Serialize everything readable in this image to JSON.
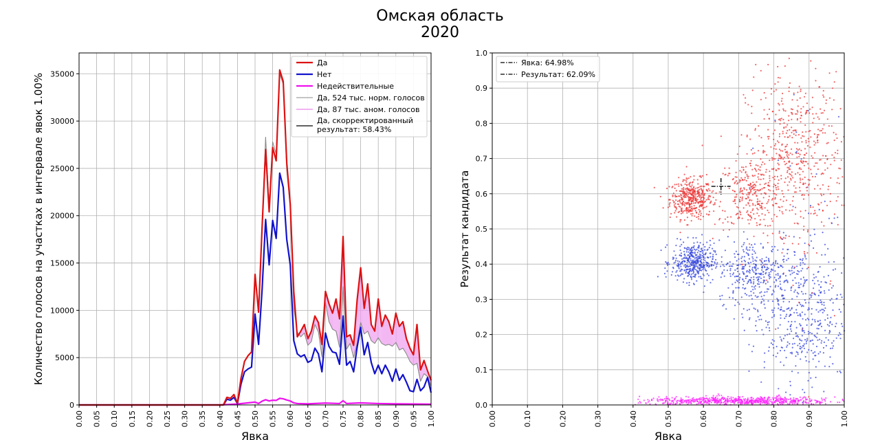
{
  "figure": {
    "title_line1": "Омская область",
    "title_line2": "2020"
  },
  "chart_data": [
    {
      "type": "line",
      "xlabel": "Явка",
      "ylabel": "Количество голосов на участках в интервале явок 1.00%",
      "xlim": [
        0,
        1
      ],
      "ylim": [
        0,
        37200
      ],
      "grid": true,
      "legend_position": "top-right",
      "x_ticks": [
        "0.00",
        "0.05",
        "0.10",
        "0.15",
        "0.20",
        "0.25",
        "0.30",
        "0.35",
        "0.40",
        "0.45",
        "0.50",
        "0.55",
        "0.60",
        "0.65",
        "0.70",
        "0.75",
        "0.80",
        "0.85",
        "0.90",
        "0.95",
        "1.00"
      ],
      "x_tick_values": [
        0,
        0.05,
        0.1,
        0.15,
        0.2,
        0.25,
        0.3,
        0.35,
        0.4,
        0.45,
        0.5,
        0.55,
        0.6,
        0.65,
        0.7,
        0.75,
        0.8,
        0.85,
        0.9,
        0.95,
        1.0
      ],
      "y_ticks": [
        "0",
        "5000",
        "10000",
        "15000",
        "20000",
        "25000",
        "30000",
        "35000"
      ],
      "y_tick_values": [
        0,
        5000,
        10000,
        15000,
        20000,
        25000,
        30000,
        35000
      ],
      "series": [
        {
          "name": "Да",
          "color": "#dd1111",
          "width": 2.2,
          "points": [
            [
              0,
              0
            ],
            [
              0.41,
              0
            ],
            [
              0.42,
              800
            ],
            [
              0.43,
              700
            ],
            [
              0.44,
              1100
            ],
            [
              0.45,
              200
            ],
            [
              0.46,
              2800
            ],
            [
              0.47,
              4600
            ],
            [
              0.48,
              5200
            ],
            [
              0.49,
              5600
            ],
            [
              0.5,
              13800
            ],
            [
              0.51,
              9800
            ],
            [
              0.52,
              18800
            ],
            [
              0.53,
              27000
            ],
            [
              0.54,
              20400
            ],
            [
              0.55,
              27200
            ],
            [
              0.56,
              25800
            ],
            [
              0.57,
              35400
            ],
            [
              0.58,
              34200
            ],
            [
              0.59,
              25600
            ],
            [
              0.6,
              21200
            ],
            [
              0.61,
              12000
            ],
            [
              0.62,
              7200
            ],
            [
              0.63,
              7800
            ],
            [
              0.64,
              8500
            ],
            [
              0.65,
              7000
            ],
            [
              0.66,
              7800
            ],
            [
              0.67,
              9400
            ],
            [
              0.68,
              8700
            ],
            [
              0.69,
              6400
            ],
            [
              0.7,
              12000
            ],
            [
              0.71,
              10700
            ],
            [
              0.72,
              9700
            ],
            [
              0.73,
              11200
            ],
            [
              0.74,
              9100
            ],
            [
              0.75,
              17800
            ],
            [
              0.76,
              7200
            ],
            [
              0.77,
              7400
            ],
            [
              0.78,
              6300
            ],
            [
              0.79,
              11100
            ],
            [
              0.8,
              14500
            ],
            [
              0.81,
              10200
            ],
            [
              0.82,
              12800
            ],
            [
              0.83,
              8500
            ],
            [
              0.84,
              7800
            ],
            [
              0.85,
              11200
            ],
            [
              0.86,
              8300
            ],
            [
              0.87,
              9500
            ],
            [
              0.88,
              8800
            ],
            [
              0.89,
              7500
            ],
            [
              0.9,
              9700
            ],
            [
              0.91,
              8300
            ],
            [
              0.92,
              8800
            ],
            [
              0.93,
              7000
            ],
            [
              0.94,
              6000
            ],
            [
              0.95,
              5300
            ],
            [
              0.96,
              8500
            ],
            [
              0.97,
              3700
            ],
            [
              0.98,
              4700
            ],
            [
              0.99,
              3600
            ],
            [
              1.0,
              2600
            ]
          ]
        },
        {
          "name": "Нет",
          "color": "#1111cc",
          "width": 2.2,
          "points": [
            [
              0,
              0
            ],
            [
              0.41,
              0
            ],
            [
              0.42,
              600
            ],
            [
              0.43,
              500
            ],
            [
              0.44,
              800
            ],
            [
              0.45,
              150
            ],
            [
              0.46,
              2200
            ],
            [
              0.47,
              3500
            ],
            [
              0.48,
              3800
            ],
            [
              0.49,
              4000
            ],
            [
              0.5,
              9600
            ],
            [
              0.51,
              6400
            ],
            [
              0.52,
              12200
            ],
            [
              0.53,
              19600
            ],
            [
              0.54,
              14800
            ],
            [
              0.55,
              19500
            ],
            [
              0.56,
              17600
            ],
            [
              0.57,
              24500
            ],
            [
              0.58,
              23000
            ],
            [
              0.59,
              17500
            ],
            [
              0.6,
              14800
            ],
            [
              0.61,
              6800
            ],
            [
              0.62,
              5400
            ],
            [
              0.63,
              5100
            ],
            [
              0.64,
              5300
            ],
            [
              0.65,
              4500
            ],
            [
              0.66,
              4700
            ],
            [
              0.67,
              6000
            ],
            [
              0.68,
              5400
            ],
            [
              0.69,
              3500
            ],
            [
              0.7,
              7600
            ],
            [
              0.71,
              6200
            ],
            [
              0.72,
              5600
            ],
            [
              0.73,
              5500
            ],
            [
              0.74,
              4300
            ],
            [
              0.75,
              9400
            ],
            [
              0.76,
              4200
            ],
            [
              0.77,
              4600
            ],
            [
              0.78,
              3500
            ],
            [
              0.79,
              6100
            ],
            [
              0.8,
              8200
            ],
            [
              0.81,
              5300
            ],
            [
              0.82,
              6600
            ],
            [
              0.83,
              4500
            ],
            [
              0.84,
              3300
            ],
            [
              0.85,
              4200
            ],
            [
              0.86,
              3300
            ],
            [
              0.87,
              4200
            ],
            [
              0.88,
              3500
            ],
            [
              0.89,
              2500
            ],
            [
              0.9,
              3800
            ],
            [
              0.91,
              2600
            ],
            [
              0.92,
              3200
            ],
            [
              0.93,
              2400
            ],
            [
              0.94,
              1500
            ],
            [
              0.95,
              1400
            ],
            [
              0.96,
              2700
            ],
            [
              0.97,
              1500
            ],
            [
              0.98,
              1900
            ],
            [
              0.99,
              2900
            ],
            [
              1.0,
              1300
            ]
          ]
        },
        {
          "name": "Недействительные",
          "color": "#ee11ee",
          "width": 2.2,
          "points": [
            [
              0,
              0
            ],
            [
              0.4,
              0
            ],
            [
              0.45,
              100
            ],
            [
              0.5,
              300
            ],
            [
              0.51,
              150
            ],
            [
              0.52,
              400
            ],
            [
              0.53,
              550
            ],
            [
              0.54,
              420
            ],
            [
              0.55,
              500
            ],
            [
              0.56,
              480
            ],
            [
              0.57,
              700
            ],
            [
              0.58,
              650
            ],
            [
              0.59,
              520
            ],
            [
              0.6,
              420
            ],
            [
              0.61,
              220
            ],
            [
              0.62,
              150
            ],
            [
              0.65,
              120
            ],
            [
              0.7,
              200
            ],
            [
              0.74,
              150
            ],
            [
              0.75,
              450
            ],
            [
              0.76,
              150
            ],
            [
              0.8,
              220
            ],
            [
              0.85,
              150
            ],
            [
              0.9,
              120
            ],
            [
              0.95,
              100
            ],
            [
              1.0,
              80
            ]
          ]
        },
        {
          "name": "Да, 524 тыс. норм. голосов",
          "color": "#888888",
          "width": 1.1,
          "points": [
            [
              0,
              0
            ],
            [
              0.41,
              0
            ],
            [
              0.42,
              800
            ],
            [
              0.43,
              700
            ],
            [
              0.44,
              1100
            ],
            [
              0.45,
              200
            ],
            [
              0.46,
              2800
            ],
            [
              0.47,
              4600
            ],
            [
              0.48,
              5200
            ],
            [
              0.49,
              5600
            ],
            [
              0.5,
              13800
            ],
            [
              0.51,
              9800
            ],
            [
              0.52,
              18800
            ],
            [
              0.53,
              28300
            ],
            [
              0.54,
              21000
            ],
            [
              0.55,
              27800
            ],
            [
              0.56,
              26500
            ],
            [
              0.57,
              35000
            ],
            [
              0.58,
              33900
            ],
            [
              0.59,
              24800
            ],
            [
              0.6,
              20800
            ],
            [
              0.61,
              10200
            ],
            [
              0.62,
              7700
            ],
            [
              0.63,
              7200
            ],
            [
              0.64,
              7600
            ],
            [
              0.65,
              6300
            ],
            [
              0.66,
              6700
            ],
            [
              0.67,
              8500
            ],
            [
              0.68,
              7700
            ],
            [
              0.69,
              5100
            ],
            [
              0.7,
              10800
            ],
            [
              0.71,
              8800
            ],
            [
              0.72,
              8000
            ],
            [
              0.73,
              7800
            ],
            [
              0.74,
              6100
            ],
            [
              0.75,
              12500
            ],
            [
              0.76,
              5900
            ],
            [
              0.77,
              6500
            ],
            [
              0.78,
              5000
            ],
            [
              0.79,
              6500
            ],
            [
              0.8,
              8700
            ],
            [
              0.81,
              7500
            ],
            [
              0.82,
              7800
            ],
            [
              0.83,
              6800
            ],
            [
              0.84,
              6500
            ],
            [
              0.85,
              7100
            ],
            [
              0.86,
              6500
            ],
            [
              0.87,
              6300
            ],
            [
              0.88,
              6400
            ],
            [
              0.89,
              6200
            ],
            [
              0.9,
              6600
            ],
            [
              0.91,
              5800
            ],
            [
              0.92,
              6000
            ],
            [
              0.93,
              5400
            ],
            [
              0.94,
              4600
            ],
            [
              0.95,
              4200
            ],
            [
              0.96,
              4400
            ],
            [
              0.97,
              2500
            ],
            [
              0.98,
              3300
            ],
            [
              0.99,
              3000
            ],
            [
              1.0,
              2000
            ]
          ]
        },
        {
          "name": "Да, 87 тыс. аном. голосов",
          "color": "#ee99ee",
          "width": 1.1,
          "kind": "hatch"
        },
        {
          "name": "Да, скорректированный результат: 58.43%",
          "name_line1": "Да, скорректированный",
          "name_line2": "результат: 58.43%",
          "color": "#000000",
          "width": 1.3
        }
      ]
    },
    {
      "type": "scatter",
      "xlabel": "Явка",
      "ylabel": "Результат кандидата",
      "xlim": [
        0,
        1
      ],
      "ylim": [
        0,
        1
      ],
      "grid": true,
      "legend_position": "top-left",
      "x_ticks": [
        "0.00",
        "0.10",
        "0.20",
        "0.30",
        "0.40",
        "0.50",
        "0.60",
        "0.70",
        "0.80",
        "0.90",
        "1.00"
      ],
      "x_tick_values": [
        0,
        0.1,
        0.2,
        0.3,
        0.4,
        0.5,
        0.6,
        0.7,
        0.8,
        0.9,
        1.0
      ],
      "y_ticks": [
        "0.0",
        "0.1",
        "0.2",
        "0.3",
        "0.4",
        "0.5",
        "0.6",
        "0.7",
        "0.8",
        "0.9",
        "1.0"
      ],
      "y_tick_values": [
        0,
        0.1,
        0.2,
        0.3,
        0.4,
        0.5,
        0.6,
        0.7,
        0.8,
        0.9,
        1.0
      ],
      "turnout_marker": {
        "label": "Явка: 64.98%",
        "value": 0.6498
      },
      "result_marker": {
        "label": "Результат: 62.09%",
        "value": 0.6209
      },
      "series": [
        {
          "name": "Да",
          "color": "#ee3333",
          "clusters": [
            {
              "count": 420,
              "cx": 0.565,
              "cy": 0.585,
              "sx": 0.03,
              "sy": 0.028
            },
            {
              "count": 300,
              "cx": 0.74,
              "cy": 0.6,
              "sx": 0.05,
              "sy": 0.05
            },
            {
              "count": 480,
              "cx": 0.86,
              "cy": 0.72,
              "sx": 0.07,
              "sy": 0.11
            },
            {
              "count": 60,
              "cx": 0.9,
              "cy": 0.5,
              "sx": 0.08,
              "sy": 0.2
            }
          ]
        },
        {
          "name": "Нет",
          "color": "#3344dd",
          "clusters": [
            {
              "count": 420,
              "cx": 0.57,
              "cy": 0.405,
              "sx": 0.03,
              "sy": 0.027
            },
            {
              "count": 300,
              "cx": 0.74,
              "cy": 0.38,
              "sx": 0.05,
              "sy": 0.045
            },
            {
              "count": 480,
              "cx": 0.87,
              "cy": 0.26,
              "sx": 0.07,
              "sy": 0.1
            },
            {
              "count": 60,
              "cx": 0.9,
              "cy": 0.45,
              "sx": 0.08,
              "sy": 0.2
            }
          ]
        },
        {
          "name": "Недействительные",
          "color": "#ff22ff",
          "clusters": [
            {
              "count": 700,
              "cx": 0.7,
              "cy": 0.011,
              "sx": 0.14,
              "sy": 0.006
            }
          ]
        }
      ]
    }
  ]
}
